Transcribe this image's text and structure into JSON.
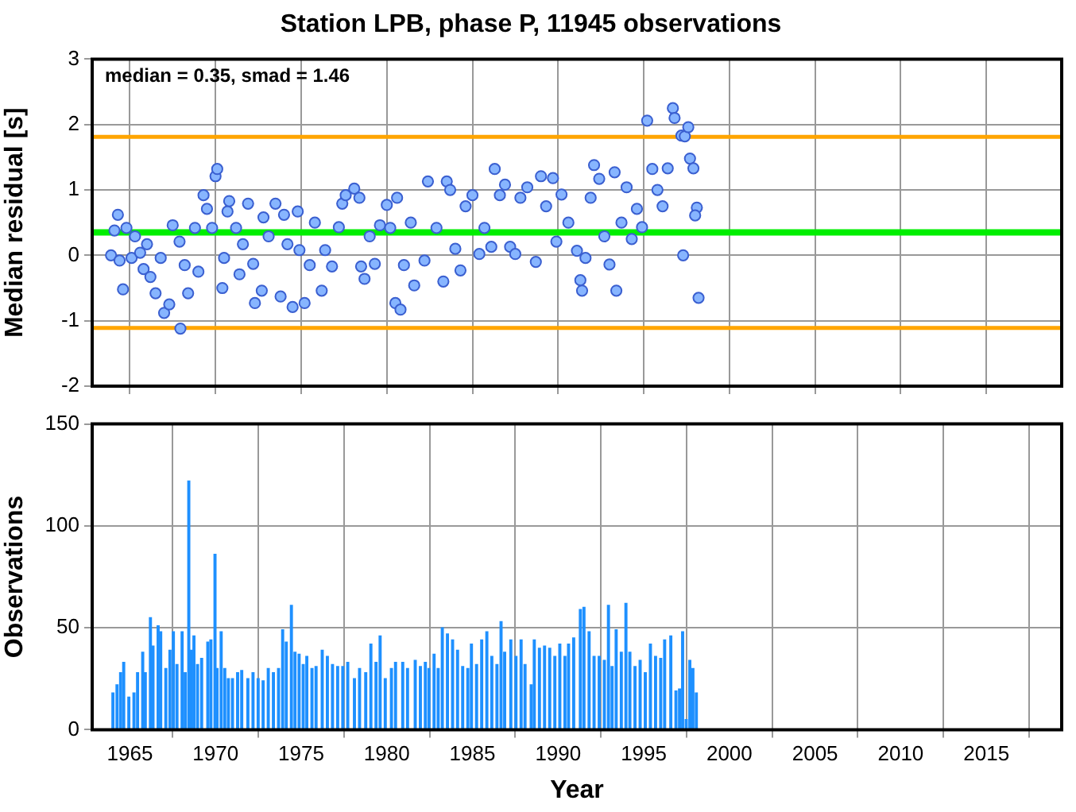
{
  "chart_data": [
    {
      "type": "scatter",
      "title": "Station LPB, phase P, 11945 observations",
      "ylabel": "Median residual [s]",
      "annotations": [
        "median = 0.35, smad = 1.46"
      ],
      "color": "#87b5ff",
      "marker": "circle",
      "grid": true,
      "legend": false,
      "tick_labels": "y",
      "xlim": [
        1962.8,
        2019.4
      ],
      "xticks": [
        1965,
        1970,
        1975,
        1980,
        1985,
        1990,
        1995,
        2000,
        2005,
        2010,
        2015
      ],
      "ylim": [
        -2,
        3
      ],
      "yticks": [
        -2,
        -1,
        0,
        1,
        2,
        3
      ],
      "ref_lines": [
        {
          "axis": "y",
          "value": 0.35,
          "color": "#00ee00"
        },
        {
          "axis": "y",
          "value": 1.81,
          "color": "#ffa500"
        },
        {
          "axis": "y",
          "value": -1.11,
          "color": "#ffa500"
        }
      ],
      "x": [
        1964.3,
        1964.1,
        1963.9,
        1964.4,
        1964.6,
        1964.8,
        1965.1,
        1965.3,
        1965.6,
        1965.8,
        1966.0,
        1966.2,
        1966.5,
        1966.8,
        1967.0,
        1967.3,
        1967.5,
        1967.9,
        1967.95,
        1968.2,
        1968.4,
        1968.8,
        1969.0,
        1969.3,
        1969.5,
        1969.8,
        1970.0,
        1970.1,
        1970.4,
        1970.5,
        1970.7,
        1970.8,
        1971.2,
        1971.4,
        1971.6,
        1971.9,
        1972.2,
        1972.3,
        1972.7,
        1972.8,
        1973.1,
        1973.5,
        1973.8,
        1974.0,
        1974.2,
        1974.5,
        1974.8,
        1974.9,
        1975.2,
        1975.5,
        1975.8,
        1976.2,
        1976.4,
        1976.8,
        1977.2,
        1977.4,
        1977.6,
        1978.1,
        1978.4,
        1978.5,
        1978.7,
        1979.0,
        1979.3,
        1979.6,
        1980.0,
        1980.2,
        1980.5,
        1980.8,
        1980.6,
        1981.0,
        1981.4,
        1981.6,
        1982.2,
        1982.4,
        1982.9,
        1983.3,
        1983.5,
        1983.7,
        1984.0,
        1984.3,
        1984.6,
        1985.0,
        1985.4,
        1985.7,
        1986.1,
        1986.3,
        1986.6,
        1986.9,
        1987.2,
        1987.5,
        1987.8,
        1988.2,
        1988.7,
        1989.0,
        1989.3,
        1989.7,
        1989.9,
        1990.2,
        1990.6,
        1991.1,
        1991.3,
        1991.4,
        1991.6,
        1991.9,
        1992.1,
        1992.4,
        1992.7,
        1993.0,
        1993.3,
        1993.4,
        1993.7,
        1994.0,
        1994.3,
        1994.6,
        1994.9,
        1995.2,
        1995.5,
        1995.8,
        1996.1,
        1996.4,
        1996.7,
        1996.8,
        1997.2,
        1997.4,
        1997.6,
        1997.7,
        1997.9,
        1997.3,
        1998.1,
        1998.0,
        1998.2
      ],
      "values": [
        0.62,
        0.38,
        0.0,
        -0.08,
        -0.52,
        0.42,
        -0.04,
        0.29,
        0.04,
        -0.21,
        0.17,
        -0.33,
        -0.58,
        -0.04,
        -0.88,
        -0.75,
        0.46,
        0.21,
        -1.12,
        -0.15,
        -0.58,
        0.42,
        -0.25,
        0.92,
        0.71,
        0.42,
        1.21,
        1.32,
        -0.5,
        -0.04,
        0.67,
        0.83,
        0.42,
        -0.29,
        0.17,
        0.79,
        -0.13,
        -0.73,
        -0.54,
        0.58,
        0.29,
        0.79,
        -0.63,
        0.62,
        0.17,
        -0.79,
        0.67,
        0.08,
        -0.73,
        -0.15,
        0.5,
        -0.54,
        0.08,
        -0.17,
        0.43,
        0.79,
        0.92,
        1.02,
        0.88,
        -0.17,
        -0.36,
        0.29,
        -0.13,
        0.46,
        0.77,
        0.42,
        -0.73,
        -0.83,
        0.88,
        -0.15,
        0.5,
        -0.46,
        -0.08,
        1.13,
        0.42,
        -0.4,
        1.13,
        1.0,
        0.1,
        -0.23,
        0.75,
        0.92,
        0.02,
        0.42,
        0.13,
        1.32,
        0.92,
        1.08,
        0.13,
        0.02,
        0.88,
        1.04,
        -0.1,
        1.21,
        0.75,
        1.18,
        0.21,
        0.93,
        0.5,
        0.07,
        -0.38,
        -0.54,
        -0.04,
        0.88,
        1.38,
        1.17,
        0.29,
        -0.14,
        1.27,
        -0.54,
        0.5,
        1.04,
        0.25,
        0.71,
        0.43,
        2.06,
        1.32,
        1.0,
        0.75,
        1.33,
        2.25,
        2.1,
        1.83,
        1.82,
        1.96,
        1.48,
        1.33,
        0.0,
        0.73,
        0.61,
        -0.65
      ]
    },
    {
      "type": "bar",
      "xlabel": "Year",
      "ylabel": "Observations",
      "color": "#1e90ff",
      "grid": true,
      "legend": false,
      "xlim": [
        1962.8,
        2019.4
      ],
      "xticks": [
        1965,
        1970,
        1975,
        1980,
        1985,
        1990,
        1995,
        2000,
        2005,
        2010,
        2015
      ],
      "ylim": [
        0,
        150
      ],
      "yticks": [
        0,
        50,
        100,
        150
      ],
      "x": [
        1964.01,
        1964.25,
        1964.46,
        1964.64,
        1964.94,
        1965.24,
        1965.45,
        1965.75,
        1965.9,
        1966.2,
        1966.35,
        1966.65,
        1966.8,
        1967.1,
        1967.34,
        1967.54,
        1967.75,
        1968.05,
        1968.23,
        1968.44,
        1968.59,
        1968.74,
        1968.95,
        1969.19,
        1969.55,
        1969.73,
        1969.97,
        1970.09,
        1970.33,
        1970.54,
        1970.75,
        1970.99,
        1971.29,
        1971.53,
        1971.89,
        1972.19,
        1972.49,
        1972.78,
        1973.08,
        1973.38,
        1973.68,
        1973.92,
        1974.13,
        1974.43,
        1974.64,
        1974.88,
        1975.12,
        1975.33,
        1975.63,
        1975.87,
        1976.23,
        1976.53,
        1976.83,
        1977.13,
        1977.43,
        1977.72,
        1978.11,
        1978.41,
        1978.77,
        1979.07,
        1979.37,
        1979.61,
        1979.91,
        1980.27,
        1980.51,
        1980.93,
        1981.21,
        1981.66,
        1981.96,
        1982.25,
        1982.46,
        1982.76,
        1983.0,
        1983.24,
        1983.54,
        1983.84,
        1984.13,
        1984.43,
        1984.73,
        1984.94,
        1985.24,
        1985.54,
        1985.84,
        1986.13,
        1986.43,
        1986.67,
        1986.88,
        1987.24,
        1987.54,
        1987.84,
        1988.07,
        1988.43,
        1988.61,
        1988.91,
        1989.21,
        1989.51,
        1989.81,
        1990.1,
        1990.4,
        1990.61,
        1990.91,
        1991.3,
        1991.51,
        1991.81,
        1992.1,
        1992.4,
        1992.7,
        1992.94,
        1993.15,
        1993.39,
        1993.69,
        1993.96,
        1994.19,
        1994.49,
        1994.79,
        1995.09,
        1995.39,
        1995.69,
        1995.99,
        1996.22,
        1996.58,
        1996.88,
        1997.09,
        1997.27,
        1997.48,
        1997.69,
        1997.87,
        1998.07
      ],
      "values": [
        18,
        22,
        28,
        33,
        16,
        18,
        28,
        38,
        28,
        55,
        41,
        51,
        48,
        30,
        39,
        48,
        32,
        48,
        28,
        122,
        39,
        46,
        32,
        35,
        43,
        44,
        86,
        30,
        48,
        30,
        25,
        25,
        28,
        29,
        25,
        28,
        25,
        24,
        30,
        28,
        30,
        49,
        43,
        61,
        38,
        37,
        32,
        36,
        30,
        31,
        39,
        36,
        32,
        31,
        31,
        33,
        25,
        30,
        28,
        42,
        33,
        46,
        25,
        30,
        33,
        33,
        30,
        34,
        31,
        33,
        30,
        37,
        30,
        50,
        47,
        44,
        39,
        31,
        30,
        42,
        32,
        44,
        48,
        36,
        32,
        53,
        38,
        44,
        36,
        44,
        32,
        22,
        44,
        40,
        41,
        40,
        36,
        42,
        36,
        42,
        45,
        59,
        60,
        48,
        36,
        36,
        34,
        61,
        31,
        49,
        38,
        62,
        38,
        31,
        34,
        28,
        42,
        36,
        35,
        44,
        46,
        19,
        20,
        48,
        5,
        34,
        30,
        18
      ]
    }
  ]
}
